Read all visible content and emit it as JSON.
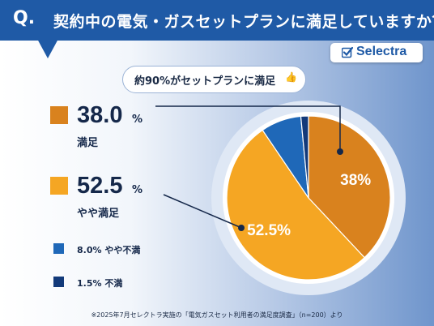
{
  "header": {
    "q_mark": "Q.",
    "question": "契約中の電気・ガスセットプランに満足していますか？"
  },
  "brand": {
    "name": "Selectra"
  },
  "callout": {
    "text": "約90%がセットプランに満足"
  },
  "legend": {
    "items": [
      {
        "value": "38.0",
        "unit": "%",
        "label": "満足",
        "color": "#d9821e"
      },
      {
        "value": "52.5",
        "unit": "%",
        "label": "やや満足",
        "color": "#f5a623"
      },
      {
        "text": "8.0% やや不満",
        "color": "#1f68b8"
      },
      {
        "text": "1.5% 不満",
        "color": "#133a7a"
      }
    ]
  },
  "footnote": "※2025年7月セレクトラ実施の「電気ガスセット利用者の満足度調査」（n=200）より",
  "chart_data": {
    "type": "pie",
    "categories": [
      "満足",
      "やや満足",
      "やや不満",
      "不満"
    ],
    "values": [
      38.0,
      52.5,
      8.0,
      1.5
    ],
    "colors": [
      "#d9821e",
      "#f5a623",
      "#1f68b8",
      "#133a7a"
    ],
    "data_labels": [
      "38%",
      "52.5%",
      "",
      ""
    ]
  }
}
